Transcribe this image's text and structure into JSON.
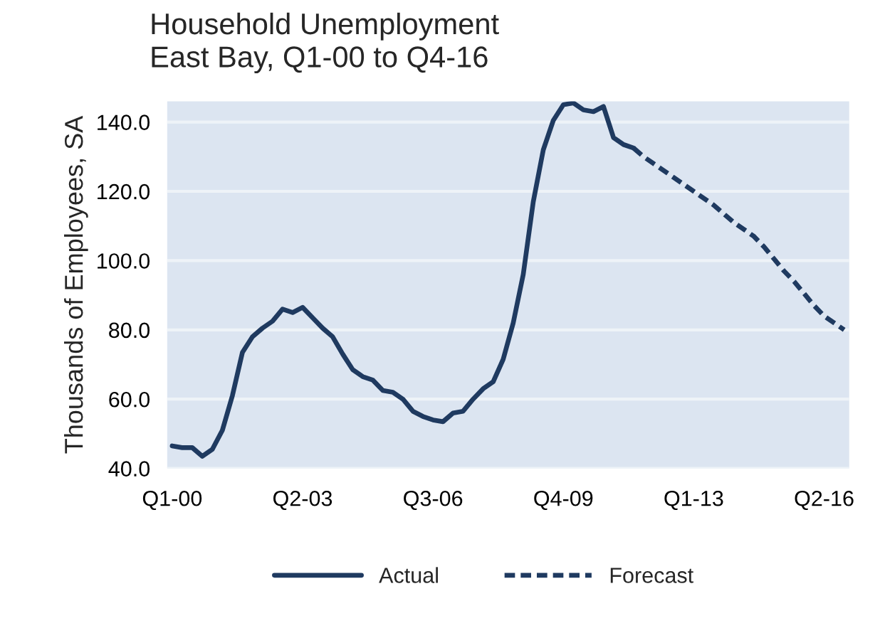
{
  "chart_data": {
    "type": "line",
    "title": "Household Unemployment\nEast Bay, Q1-00 to Q4-16",
    "ylabel": "Thousands of Employees, SA",
    "categories": [
      "Q1-00",
      null,
      null,
      null,
      null,
      null,
      null,
      null,
      null,
      null,
      null,
      null,
      null,
      "Q2-03",
      null,
      null,
      null,
      null,
      null,
      null,
      null,
      null,
      null,
      null,
      null,
      null,
      "Q3-06",
      null,
      null,
      null,
      null,
      null,
      null,
      null,
      null,
      null,
      null,
      null,
      null,
      "Q4-09",
      null,
      null,
      null,
      null,
      null,
      null,
      null,
      null,
      null,
      null,
      null,
      null,
      "Q1-13",
      null,
      null,
      null,
      null,
      null,
      null,
      null,
      null,
      null,
      null,
      null,
      null,
      "Q2-16",
      null,
      null
    ],
    "series": [
      {
        "name": "Actual",
        "color": "#1f3a60",
        "line_style": "solid",
        "values": [
          46.5,
          46,
          46,
          43.5,
          45.5,
          51,
          61,
          73.5,
          78,
          80.5,
          82.5,
          86,
          85,
          86.5,
          83.5,
          80.5,
          78,
          73,
          68.5,
          66.5,
          65.5,
          62.5,
          62,
          60,
          56.5,
          55,
          54,
          53.5,
          56,
          56.5,
          60,
          63,
          65,
          71.5,
          82,
          96,
          117,
          132,
          140.5,
          145,
          145.5,
          143.5,
          143,
          144.5,
          135.5,
          133.5,
          132.5,
          null,
          null,
          null,
          null,
          null,
          null,
          null,
          null,
          null,
          null,
          null,
          null,
          null,
          null,
          null,
          null,
          null,
          null,
          null,
          null,
          null
        ]
      },
      {
        "name": "Forecast",
        "color": "#1f3a60",
        "line_style": "dashed",
        "values": [
          null,
          null,
          null,
          null,
          null,
          null,
          null,
          null,
          null,
          null,
          null,
          null,
          null,
          null,
          null,
          null,
          null,
          null,
          null,
          null,
          null,
          null,
          null,
          null,
          null,
          null,
          null,
          null,
          null,
          null,
          null,
          null,
          null,
          null,
          null,
          null,
          null,
          null,
          null,
          null,
          null,
          null,
          null,
          null,
          null,
          null,
          132.5,
          130,
          128,
          126,
          124,
          122,
          120,
          118,
          116,
          113.5,
          111,
          109,
          107,
          104,
          100.5,
          97,
          94,
          90.5,
          87,
          84,
          82,
          80
        ]
      }
    ],
    "ylim": [
      40,
      146
    ],
    "yticks": [
      {
        "value": 40,
        "label": "40.0"
      },
      {
        "value": 60,
        "label": "60.0"
      },
      {
        "value": 80,
        "label": "80.0"
      },
      {
        "value": 100,
        "label": "100.0"
      },
      {
        "value": 120,
        "label": "120.0"
      },
      {
        "value": 140,
        "label": "140.0"
      }
    ],
    "grid": "y",
    "legend": "bottom",
    "marker": "none"
  }
}
